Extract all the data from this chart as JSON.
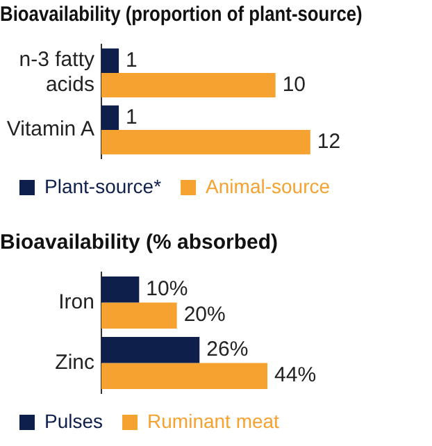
{
  "chart_data": [
    {
      "type": "bar",
      "orientation": "horizontal",
      "title": "Bioavailability (proportion of plant-source)",
      "categories": [
        "n-3 fatty acids",
        "Vitamin A"
      ],
      "series": [
        {
          "name": "Plant-source*",
          "color": "#0f1f4b",
          "values": [
            1,
            1
          ]
        },
        {
          "name": "Animal-source",
          "color": "#f5a231",
          "values": [
            10,
            12
          ]
        }
      ],
      "data_labels": true,
      "legend": "bottom",
      "tick_labels": "y"
    },
    {
      "type": "bar",
      "orientation": "horizontal",
      "title": "Bioavailability (% absorbed)",
      "categories": [
        "Iron",
        "Zinc"
      ],
      "series": [
        {
          "name": "Pulses",
          "color": "#0f1f4b",
          "values": [
            10,
            26
          ],
          "value_labels": [
            "10%",
            "26%"
          ]
        },
        {
          "name": "Ruminant meat",
          "color": "#f5a231",
          "values": [
            20,
            44
          ],
          "value_labels": [
            "20%",
            "44%"
          ]
        }
      ],
      "legend": "bottom",
      "tick_labels": "y"
    }
  ]
}
